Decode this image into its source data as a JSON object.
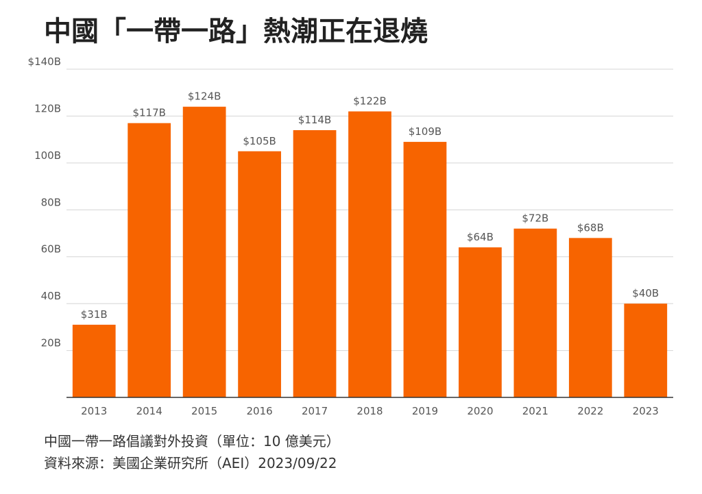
{
  "title": "中國「一帶一路」熱潮正在退燒",
  "colors": {
    "bar": "#f76400",
    "grid": "#d4d4d4",
    "axis": "#333333",
    "text": "#555555"
  },
  "chart_data": {
    "type": "bar",
    "categories": [
      "2013",
      "2014",
      "2015",
      "2016",
      "2017",
      "2018",
      "2019",
      "2020",
      "2021",
      "2022",
      "2023"
    ],
    "values": [
      31,
      117,
      124,
      105,
      114,
      122,
      109,
      64,
      72,
      68,
      40
    ],
    "data_labels": [
      "$31B",
      "$117B",
      "$124B",
      "$105B",
      "$114B",
      "$122B",
      "$109B",
      "$64B",
      "$72B",
      "$68B",
      "$40B"
    ],
    "y_ticks": [
      {
        "value": 20,
        "label": "20B"
      },
      {
        "value": 40,
        "label": "40B"
      },
      {
        "value": 60,
        "label": "60B"
      },
      {
        "value": 80,
        "label": "80B"
      },
      {
        "value": 100,
        "label": "100B"
      },
      {
        "value": 120,
        "label": "120B"
      },
      {
        "value": 140,
        "label": "$140B"
      }
    ],
    "ylim": [
      0,
      140
    ],
    "grid": true,
    "legend": "none"
  },
  "footer": {
    "note": "中國一帶一路倡議對外投資（單位：10 億美元）",
    "source": "資料來源：美國企業研究所（AEI）2023/09/22"
  }
}
